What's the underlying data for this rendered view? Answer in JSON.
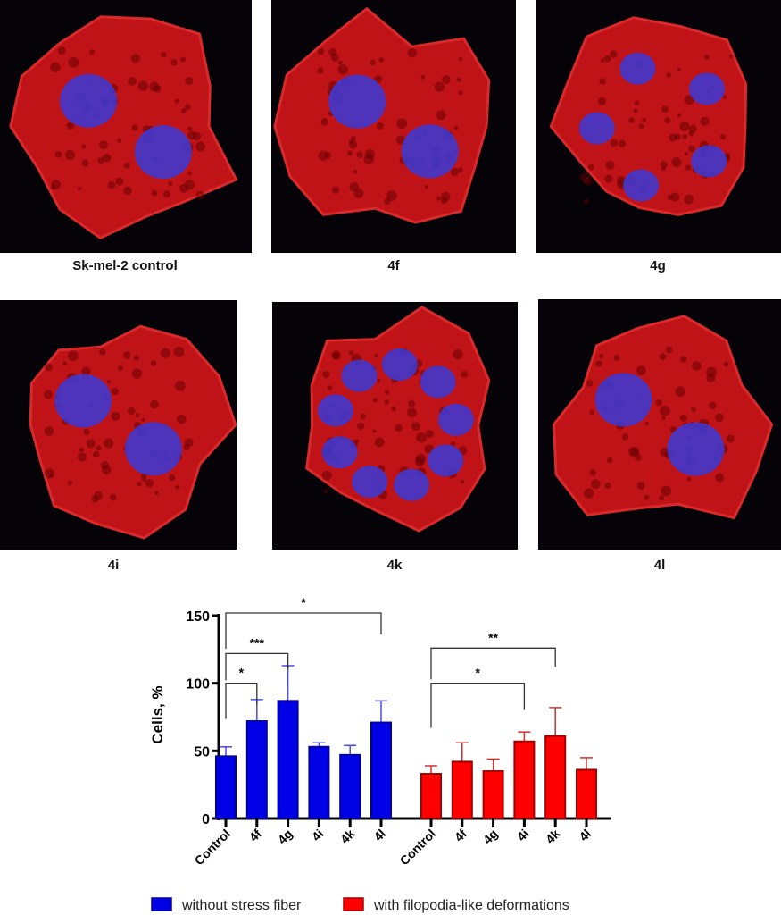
{
  "panels": [
    {
      "label": "Sk-mel-2 control",
      "nuclei": 2
    },
    {
      "label": "4f",
      "nuclei": 2
    },
    {
      "label": "4g",
      "nuclei": 5
    },
    {
      "label": "4i",
      "nuclei": 2
    },
    {
      "label": "4k",
      "nuclei": 9
    },
    {
      "label": "4l",
      "nuclei": 2
    }
  ],
  "colors": {
    "actin": "#e0161a",
    "nucleus": "#3a3ad8",
    "background": "#050208",
    "blue_series": "#0000e6",
    "red_series": "#ff0000"
  },
  "chart_data": {
    "type": "bar",
    "ylabel": "Cells, %",
    "ylim": [
      0,
      150
    ],
    "yticks": [
      "0",
      "50",
      "100",
      "150"
    ],
    "grid": false,
    "legend_placement": "bottom",
    "groups": [
      {
        "name": "without stress fiber",
        "color": "#0000e6",
        "categories": [
          "Control",
          "4f",
          "4g",
          "4i",
          "4k",
          "4l"
        ],
        "values": [
          46,
          72,
          87,
          53,
          47,
          71
        ],
        "error_upper": [
          53,
          88,
          113,
          56,
          54,
          87
        ]
      },
      {
        "name": "with filopodia-like deformations",
        "color": "#ff0000",
        "categories": [
          "Control",
          "4f",
          "4g",
          "4i",
          "4k",
          "4l"
        ],
        "values": [
          33,
          42,
          35,
          57,
          61,
          36
        ],
        "error_upper": [
          39,
          56,
          44,
          64,
          82,
          45
        ]
      }
    ],
    "significance": [
      {
        "group": 0,
        "from": "Control",
        "to": "4f",
        "label": "*",
        "level": 100
      },
      {
        "group": 0,
        "from": "Control",
        "to": "4g",
        "label": "***",
        "level": 122
      },
      {
        "group": 0,
        "from": "Control",
        "to": "4l",
        "label": "*",
        "level": 152
      },
      {
        "group": 1,
        "from": "Control",
        "to": "4i",
        "label": "*",
        "level": 100
      },
      {
        "group": 1,
        "from": "Control",
        "to": "4k",
        "label": "**",
        "level": 126
      }
    ]
  }
}
